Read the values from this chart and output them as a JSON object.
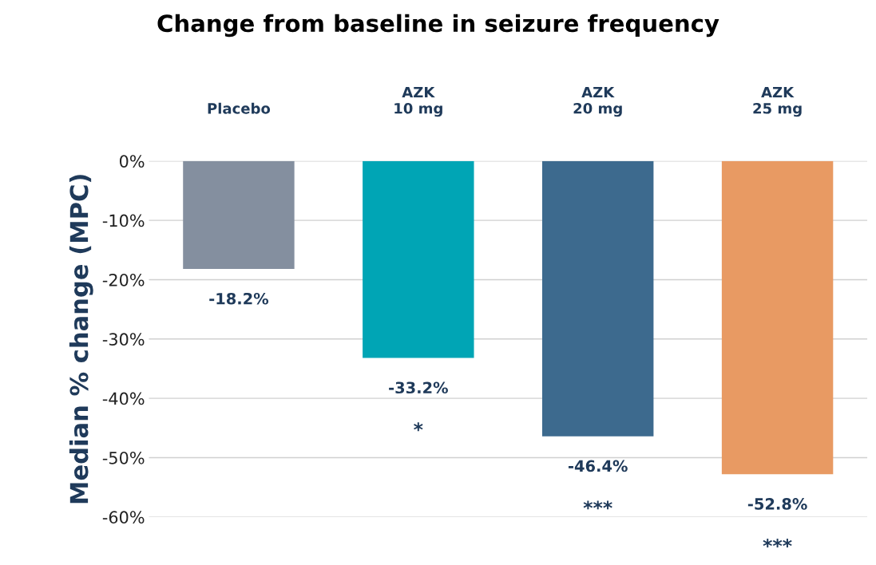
{
  "chart_data": {
    "type": "bar",
    "title": "Change from baseline in seizure frequency",
    "ylabel": "Median % change (MPC)",
    "categories": [
      "Placebo",
      "AZK\n10 mg",
      "AZK\n20 mg",
      "AZK\n25 mg"
    ],
    "values": [
      -18.2,
      -33.2,
      -46.4,
      -52.8
    ],
    "colors": [
      "#848f9f",
      "#00a5b5",
      "#3d6a8e",
      "#e89a63"
    ],
    "value_labels": [
      "-18.2%",
      "-33.2%",
      "-46.4%",
      "-52.8%"
    ],
    "ylim": [
      -60,
      0
    ],
    "yticks": [
      {
        "value": -60,
        "label": "-60%"
      },
      {
        "value": -50,
        "label": "-50%"
      },
      {
        "value": -40,
        "label": "-40%"
      },
      {
        "value": -30,
        "label": "-30%"
      },
      {
        "value": -20,
        "label": "-20%"
      },
      {
        "value": -10,
        "label": "-10%"
      },
      {
        "value": 0,
        "label": "0%"
      }
    ],
    "grid": "y",
    "legend": false,
    "annotations": [
      "*",
      "***",
      "***"
    ]
  }
}
